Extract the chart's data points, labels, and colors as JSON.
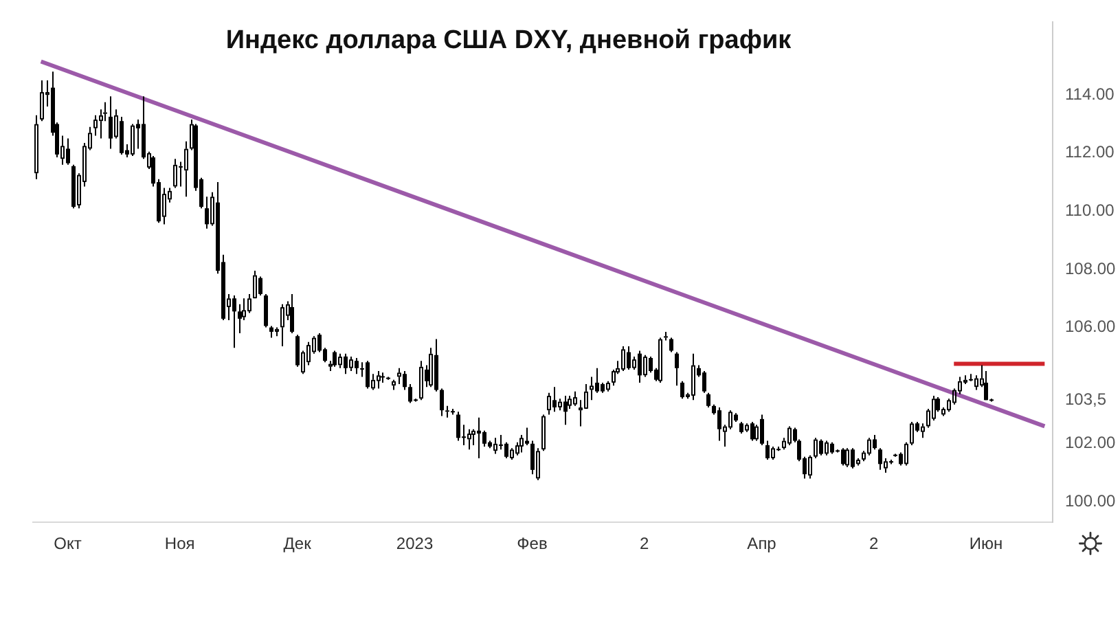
{
  "chart_data": {
    "type": "candlestick",
    "title": "Индекс доллара США DXY, дневной график",
    "categories": [
      null,
      null,
      null,
      null,
      null,
      null,
      "Окт",
      null,
      null,
      null,
      null,
      null,
      null,
      null,
      null,
      null,
      null,
      null,
      null,
      null,
      null,
      null,
      null,
      null,
      null,
      null,
      null,
      "Ноя",
      null,
      null,
      null,
      null,
      null,
      null,
      null,
      null,
      null,
      null,
      null,
      null,
      null,
      null,
      null,
      null,
      null,
      null,
      null,
      null,
      null,
      "Дек",
      null,
      null,
      null,
      null,
      null,
      null,
      null,
      null,
      null,
      null,
      null,
      null,
      null,
      null,
      null,
      null,
      null,
      null,
      null,
      null,
      null,
      "2023",
      null,
      null,
      null,
      null,
      null,
      null,
      null,
      null,
      null,
      null,
      null,
      null,
      null,
      null,
      null,
      null,
      null,
      null,
      null,
      null,
      null,
      "Фев",
      null,
      null,
      null,
      null,
      null,
      null,
      null,
      null,
      null,
      null,
      null,
      null,
      null,
      null,
      null,
      null,
      null,
      null,
      null,
      null,
      "2",
      null,
      null,
      null,
      null,
      null,
      null,
      null,
      null,
      null,
      null,
      null,
      null,
      null,
      null,
      null,
      null,
      null,
      null,
      null,
      null,
      null,
      "Апр",
      null,
      null,
      null,
      null,
      null,
      null,
      null,
      null,
      null,
      null,
      null,
      null,
      null,
      null,
      null,
      null,
      null,
      null,
      null,
      null,
      "2",
      null,
      null,
      null,
      null,
      null,
      null,
      null,
      null,
      null,
      null,
      null,
      null,
      null,
      null,
      null,
      null,
      null,
      null,
      null,
      null,
      "Июн",
      null,
      null,
      null,
      null,
      null,
      null,
      null,
      null,
      null,
      null,
      null,
      null
    ],
    "color": "#000000",
    "ohlc": [
      [
        111.3,
        113.3,
        111.1,
        113.0
      ],
      [
        113.15,
        114.5,
        113.1,
        114.1
      ],
      [
        114.0,
        114.5,
        113.6,
        114.1
      ],
      [
        114.25,
        114.8,
        112.6,
        112.7
      ],
      [
        113.0,
        113.05,
        111.85,
        111.95
      ],
      [
        111.8,
        112.6,
        111.6,
        112.25
      ],
      [
        112.15,
        112.5,
        111.6,
        111.65
      ],
      [
        111.55,
        111.6,
        110.1,
        110.15
      ],
      [
        110.2,
        111.3,
        110.1,
        111.25
      ],
      [
        111.0,
        112.35,
        110.85,
        112.25
      ],
      [
        112.15,
        112.9,
        112.1,
        112.7
      ],
      [
        112.85,
        113.3,
        112.6,
        113.15
      ],
      [
        113.1,
        113.5,
        112.5,
        113.3
      ],
      [
        113.35,
        113.75,
        113.1,
        113.4
      ],
      [
        113.25,
        113.95,
        112.15,
        112.5
      ],
      [
        112.55,
        113.5,
        112.5,
        113.3
      ],
      [
        113.1,
        113.25,
        111.95,
        112.0
      ],
      [
        112.1,
        112.3,
        111.85,
        111.95
      ],
      [
        111.95,
        113.0,
        111.9,
        112.95
      ],
      [
        113.0,
        113.15,
        112.15,
        112.85
      ],
      [
        113.0,
        113.95,
        111.8,
        111.85
      ],
      [
        111.5,
        112.05,
        111.45,
        112.0
      ],
      [
        111.85,
        111.9,
        110.85,
        110.95
      ],
      [
        111.0,
        111.1,
        109.6,
        109.65
      ],
      [
        109.8,
        110.8,
        109.55,
        110.6
      ],
      [
        110.4,
        110.8,
        110.3,
        110.7
      ],
      [
        110.85,
        111.8,
        110.8,
        111.6
      ],
      [
        111.5,
        111.7,
        110.85,
        111.55
      ],
      [
        111.4,
        112.4,
        110.5,
        112.15
      ],
      [
        112.15,
        113.15,
        112.1,
        113.0
      ],
      [
        112.95,
        113.0,
        110.7,
        110.8
      ],
      [
        111.1,
        111.15,
        110.1,
        110.15
      ],
      [
        110.1,
        110.5,
        109.4,
        109.55
      ],
      [
        109.55,
        110.65,
        109.5,
        110.5
      ],
      [
        110.3,
        111.0,
        107.85,
        107.95
      ],
      [
        108.25,
        108.5,
        106.25,
        106.3
      ],
      [
        106.7,
        107.15,
        106.25,
        107.0
      ],
      [
        107.0,
        107.1,
        105.3,
        106.55
      ],
      [
        106.55,
        106.8,
        105.8,
        106.3
      ],
      [
        106.35,
        107.0,
        106.25,
        106.6
      ],
      [
        106.55,
        107.15,
        106.5,
        107.0
      ],
      [
        107.0,
        107.95,
        107.0,
        107.8
      ],
      [
        107.7,
        107.75,
        107.1,
        107.15
      ],
      [
        107.1,
        107.15,
        106.0,
        106.05
      ],
      [
        106.0,
        106.05,
        105.65,
        105.85
      ],
      [
        105.85,
        106.0,
        105.7,
        105.95
      ],
      [
        106.0,
        106.8,
        105.35,
        106.7
      ],
      [
        106.4,
        106.9,
        106.25,
        106.8
      ],
      [
        106.7,
        107.15,
        105.8,
        105.85
      ],
      [
        105.7,
        105.75,
        104.65,
        104.7
      ],
      [
        104.45,
        105.2,
        104.4,
        105.15
      ],
      [
        104.8,
        105.5,
        104.7,
        105.4
      ],
      [
        105.15,
        105.7,
        105.1,
        105.65
      ],
      [
        105.75,
        105.8,
        105.15,
        105.2
      ],
      [
        105.25,
        105.3,
        104.8,
        104.85
      ],
      [
        104.65,
        104.85,
        104.5,
        104.75
      ],
      [
        105.15,
        105.2,
        104.65,
        104.7
      ],
      [
        104.7,
        105.1,
        104.6,
        105.0
      ],
      [
        105.0,
        105.1,
        104.4,
        104.6
      ],
      [
        104.6,
        105.0,
        104.5,
        104.9
      ],
      [
        104.85,
        104.95,
        104.4,
        104.6
      ],
      [
        104.55,
        104.8,
        104.3,
        104.6
      ],
      [
        104.8,
        104.85,
        103.9,
        103.95
      ],
      [
        103.9,
        104.4,
        103.85,
        104.2
      ],
      [
        104.15,
        104.5,
        103.9,
        104.35
      ],
      [
        104.3,
        104.45,
        104.1,
        104.3
      ],
      [
        104.25,
        104.3,
        104.2,
        104.25
      ],
      [
        104.0,
        104.2,
        103.85,
        104.15
      ],
      [
        104.3,
        104.6,
        104.05,
        104.45
      ],
      [
        104.4,
        104.5,
        103.85,
        103.95
      ],
      [
        103.95,
        104.05,
        103.4,
        103.45
      ],
      [
        103.5,
        103.55,
        103.45,
        103.5
      ],
      [
        103.55,
        104.85,
        103.5,
        104.65
      ],
      [
        104.55,
        104.7,
        103.95,
        104.15
      ],
      [
        104.0,
        105.3,
        103.95,
        105.1
      ],
      [
        105.05,
        105.6,
        103.8,
        103.85
      ],
      [
        103.85,
        103.9,
        102.95,
        103.15
      ],
      [
        103.1,
        103.3,
        102.9,
        103.15
      ],
      [
        103.1,
        103.2,
        103.0,
        103.1
      ],
      [
        103.0,
        103.1,
        102.1,
        102.2
      ],
      [
        102.25,
        102.65,
        101.95,
        102.2
      ],
      [
        102.15,
        102.5,
        101.8,
        102.35
      ],
      [
        102.3,
        102.5,
        101.95,
        102.45
      ],
      [
        102.45,
        102.9,
        101.5,
        102.35
      ],
      [
        102.4,
        102.45,
        101.9,
        102.0
      ],
      [
        102.05,
        102.1,
        101.85,
        101.9
      ],
      [
        101.75,
        102.2,
        101.65,
        102.0
      ],
      [
        101.95,
        102.3,
        101.8,
        101.95
      ],
      [
        102.0,
        102.05,
        101.5,
        101.55
      ],
      [
        101.5,
        101.85,
        101.45,
        101.8
      ],
      [
        101.65,
        102.05,
        101.6,
        101.95
      ],
      [
        101.9,
        102.3,
        101.7,
        102.2
      ],
      [
        102.1,
        102.55,
        101.95,
        102.0
      ],
      [
        102.0,
        102.1,
        100.95,
        101.1
      ],
      [
        100.8,
        101.85,
        100.75,
        101.75
      ],
      [
        101.8,
        103.0,
        101.75,
        102.95
      ],
      [
        103.15,
        103.75,
        103.0,
        103.65
      ],
      [
        103.5,
        103.95,
        103.1,
        103.25
      ],
      [
        103.25,
        103.55,
        103.15,
        103.45
      ],
      [
        103.45,
        103.65,
        102.65,
        103.1
      ],
      [
        103.3,
        103.65,
        103.2,
        103.55
      ],
      [
        103.35,
        103.8,
        103.3,
        103.6
      ],
      [
        103.15,
        103.5,
        102.6,
        103.25
      ],
      [
        103.2,
        104.05,
        103.2,
        103.8
      ],
      [
        103.85,
        104.3,
        103.5,
        104.0
      ],
      [
        104.1,
        104.6,
        103.75,
        103.8
      ],
      [
        104.05,
        104.1,
        103.75,
        103.8
      ],
      [
        103.85,
        104.15,
        103.8,
        104.1
      ],
      [
        104.1,
        104.55,
        104.0,
        104.5
      ],
      [
        104.45,
        104.85,
        104.4,
        104.6
      ],
      [
        104.55,
        105.35,
        104.5,
        105.25
      ],
      [
        105.15,
        105.35,
        104.55,
        104.6
      ],
      [
        104.6,
        105.0,
        104.55,
        104.9
      ],
      [
        105.1,
        105.2,
        104.1,
        104.35
      ],
      [
        104.35,
        105.05,
        104.3,
        105.0
      ],
      [
        104.95,
        105.0,
        104.45,
        104.5
      ],
      [
        104.55,
        104.6,
        104.15,
        104.2
      ],
      [
        104.15,
        105.65,
        104.1,
        105.6
      ],
      [
        105.65,
        105.85,
        105.55,
        105.7
      ],
      [
        105.6,
        105.65,
        105.15,
        105.2
      ],
      [
        105.1,
        105.15,
        104.0,
        104.6
      ],
      [
        104.1,
        104.15,
        103.55,
        103.6
      ],
      [
        103.6,
        103.75,
        103.55,
        103.7
      ],
      [
        103.65,
        105.1,
        103.5,
        104.7
      ],
      [
        104.6,
        104.7,
        104.3,
        104.35
      ],
      [
        104.45,
        104.5,
        103.75,
        103.8
      ],
      [
        103.7,
        103.75,
        103.25,
        103.3
      ],
      [
        103.3,
        103.35,
        103.0,
        103.05
      ],
      [
        103.15,
        103.25,
        102.1,
        102.5
      ],
      [
        102.4,
        102.65,
        101.9,
        102.6
      ],
      [
        102.55,
        103.15,
        102.5,
        103.1
      ],
      [
        103.0,
        103.05,
        102.75,
        102.8
      ],
      [
        102.7,
        102.75,
        102.35,
        102.4
      ],
      [
        102.45,
        102.7,
        102.4,
        102.65
      ],
      [
        102.7,
        102.75,
        102.1,
        102.15
      ],
      [
        102.15,
        102.65,
        102.1,
        102.6
      ],
      [
        102.85,
        103.0,
        101.95,
        102.0
      ],
      [
        101.95,
        102.1,
        101.45,
        101.5
      ],
      [
        101.5,
        101.9,
        101.45,
        101.85
      ],
      [
        101.8,
        101.9,
        101.75,
        101.8
      ],
      [
        101.85,
        102.2,
        101.8,
        102.1
      ],
      [
        102.0,
        102.6,
        101.95,
        102.55
      ],
      [
        102.5,
        102.55,
        102.05,
        102.1
      ],
      [
        102.1,
        102.15,
        101.4,
        101.45
      ],
      [
        101.5,
        101.55,
        100.8,
        100.95
      ],
      [
        100.9,
        101.6,
        100.8,
        101.55
      ],
      [
        101.55,
        102.2,
        101.5,
        102.15
      ],
      [
        102.1,
        102.15,
        101.6,
        101.65
      ],
      [
        101.65,
        102.1,
        101.6,
        102.05
      ],
      [
        102.0,
        102.05,
        101.65,
        101.7
      ],
      [
        101.75,
        101.8,
        101.7,
        101.75
      ],
      [
        101.8,
        101.85,
        101.25,
        101.3
      ],
      [
        101.25,
        101.85,
        101.2,
        101.8
      ],
      [
        101.8,
        101.85,
        101.15,
        101.2
      ],
      [
        101.3,
        101.5,
        101.25,
        101.45
      ],
      [
        101.45,
        101.75,
        101.4,
        101.7
      ],
      [
        101.65,
        102.2,
        101.6,
        102.15
      ],
      [
        102.15,
        102.3,
        101.8,
        101.85
      ],
      [
        101.8,
        101.85,
        101.1,
        101.3
      ],
      [
        101.15,
        101.5,
        101.0,
        101.4
      ],
      [
        101.4,
        101.45,
        101.3,
        101.35
      ],
      [
        101.6,
        101.65,
        101.55,
        101.6
      ],
      [
        101.65,
        101.7,
        101.25,
        101.3
      ],
      [
        101.3,
        102.05,
        101.25,
        102.0
      ],
      [
        102.0,
        102.75,
        101.95,
        102.7
      ],
      [
        102.7,
        102.75,
        102.4,
        102.45
      ],
      [
        102.4,
        102.7,
        102.2,
        102.6
      ],
      [
        102.6,
        103.2,
        102.55,
        103.15
      ],
      [
        102.85,
        103.65,
        102.8,
        103.55
      ],
      [
        103.55,
        103.6,
        103.1,
        103.15
      ],
      [
        103.0,
        103.25,
        102.95,
        103.2
      ],
      [
        103.15,
        103.55,
        103.1,
        103.5
      ],
      [
        103.4,
        103.9,
        103.35,
        103.85
      ],
      [
        103.8,
        104.3,
        103.7,
        104.15
      ],
      [
        104.1,
        104.35,
        104.05,
        104.2
      ],
      [
        104.2,
        104.4,
        104.15,
        104.2
      ],
      [
        103.95,
        104.35,
        103.85,
        104.25
      ],
      [
        104.0,
        104.7,
        103.95,
        104.25
      ],
      [
        104.1,
        104.5,
        103.5,
        103.5
      ],
      [
        103.5,
        103.55,
        103.45,
        103.5
      ],
      null,
      null,
      null,
      null,
      null,
      null,
      null,
      null,
      null,
      null,
      null
    ],
    "series": [
      {
        "type": "line",
        "color": "#9c5aa9",
        "values": [
          null,
          115.15,
          null,
          null,
          null,
          null,
          null,
          null,
          null,
          null,
          null,
          null,
          null,
          null,
          null,
          null,
          null,
          null,
          null,
          null,
          null,
          null,
          null,
          null,
          null,
          null,
          null,
          null,
          null,
          null,
          null,
          null,
          null,
          null,
          null,
          null,
          null,
          null,
          null,
          null,
          null,
          null,
          null,
          null,
          null,
          null,
          null,
          null,
          null,
          null,
          null,
          null,
          null,
          null,
          null,
          null,
          null,
          null,
          null,
          null,
          null,
          null,
          null,
          null,
          null,
          null,
          null,
          null,
          null,
          null,
          null,
          null,
          null,
          null,
          null,
          null,
          null,
          null,
          null,
          null,
          null,
          null,
          null,
          null,
          null,
          null,
          null,
          null,
          null,
          null,
          null,
          null,
          null,
          null,
          null,
          null,
          null,
          null,
          null,
          null,
          null,
          null,
          null,
          null,
          null,
          null,
          null,
          null,
          null,
          null,
          null,
          null,
          null,
          null,
          null,
          null,
          null,
          null,
          null,
          null,
          null,
          null,
          null,
          null,
          null,
          null,
          null,
          null,
          null,
          null,
          null,
          null,
          null,
          null,
          null,
          null,
          null,
          null,
          null,
          null,
          null,
          null,
          null,
          null,
          null,
          null,
          null,
          null,
          null,
          null,
          null,
          null,
          null,
          null,
          null,
          null,
          null,
          null,
          null,
          null,
          null,
          null,
          null,
          null,
          null,
          null,
          null,
          null,
          null,
          null,
          null,
          null,
          null,
          null,
          null,
          null,
          null,
          null,
          null,
          null,
          null,
          null,
          null,
          null,
          null,
          null,
          null,
          null,
          null,
          102.6,
          null
        ]
      },
      {
        "type": "line",
        "color": "#d0242b",
        "values": [
          null,
          null,
          null,
          null,
          null,
          null,
          null,
          null,
          null,
          null,
          null,
          null,
          null,
          null,
          null,
          null,
          null,
          null,
          null,
          null,
          null,
          null,
          null,
          null,
          null,
          null,
          null,
          null,
          null,
          null,
          null,
          null,
          null,
          null,
          null,
          null,
          null,
          null,
          null,
          null,
          null,
          null,
          null,
          null,
          null,
          null,
          null,
          null,
          null,
          null,
          null,
          null,
          null,
          null,
          null,
          null,
          null,
          null,
          null,
          null,
          null,
          null,
          null,
          null,
          null,
          null,
          null,
          null,
          null,
          null,
          null,
          null,
          null,
          null,
          null,
          null,
          null,
          null,
          null,
          null,
          null,
          null,
          null,
          null,
          null,
          null,
          null,
          null,
          null,
          null,
          null,
          null,
          null,
          null,
          null,
          null,
          null,
          null,
          null,
          null,
          null,
          null,
          null,
          null,
          null,
          null,
          null,
          null,
          null,
          null,
          null,
          null,
          null,
          null,
          null,
          null,
          null,
          null,
          null,
          null,
          null,
          null,
          null,
          null,
          null,
          null,
          null,
          null,
          null,
          null,
          null,
          null,
          null,
          null,
          null,
          null,
          null,
          null,
          null,
          null,
          null,
          null,
          null,
          null,
          null,
          null,
          null,
          null,
          null,
          null,
          null,
          null,
          null,
          null,
          null,
          null,
          null,
          null,
          null,
          null,
          null,
          null,
          null,
          null,
          null,
          null,
          null,
          null,
          null,
          null,
          null,
          null,
          104.75,
          null,
          null,
          null,
          null,
          null,
          null,
          null,
          null,
          null,
          null,
          null,
          null,
          null,
          null,
          null,
          null,
          104.75,
          null
        ]
      }
    ],
    "ylim": [
      99.3,
      116.5
    ],
    "yticks": [
      {
        "value": 100,
        "label": "100.00"
      },
      {
        "value": 102,
        "label": "102.00"
      },
      {
        "value": 103.5,
        "label": "103,5"
      },
      {
        "value": 106,
        "label": "106.00"
      },
      {
        "value": 108,
        "label": "108.00"
      },
      {
        "value": 110,
        "label": "110.00"
      },
      {
        "value": 112,
        "label": "112.00"
      },
      {
        "value": 114,
        "label": "114.00"
      }
    ]
  }
}
